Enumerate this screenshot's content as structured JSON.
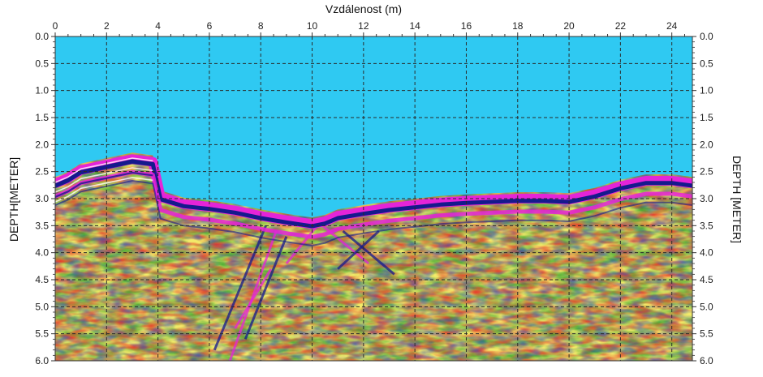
{
  "chart_data": {
    "type": "heatmap",
    "title": "",
    "xlabel": "Vzdálenost (m)",
    "ylabel_left": "DEPTH[METER]",
    "ylabel_right": "DEPTH [METER]",
    "xlim": [
      0,
      24.8
    ],
    "ylim": [
      0,
      6.0
    ],
    "x_ticks": [
      "0",
      "2",
      "4",
      "6",
      "8",
      "10",
      "12",
      "14",
      "16",
      "18",
      "20",
      "22",
      "24"
    ],
    "y_ticks": [
      "0.0",
      "0.5",
      "1.0",
      "1.5",
      "2.0",
      "2.5",
      "3.0",
      "3.5",
      "4.0",
      "4.5",
      "5.0",
      "5.5",
      "6.0"
    ],
    "grid": true,
    "y_inverted": true,
    "surface_profile": {
      "x": [
        0,
        0.5,
        1,
        2,
        3,
        3.8,
        4.1,
        5,
        6,
        7,
        8,
        9,
        10,
        10.5,
        11,
        12,
        13,
        14,
        15,
        16,
        18,
        19,
        20,
        21,
        22,
        23,
        24,
        24.8
      ],
      "depth": [
        2.6,
        2.5,
        2.35,
        2.25,
        2.15,
        2.2,
        2.85,
        2.98,
        3.03,
        3.1,
        3.2,
        3.28,
        3.35,
        3.3,
        3.2,
        3.12,
        3.05,
        3.0,
        2.95,
        2.92,
        2.88,
        2.88,
        2.9,
        2.8,
        2.65,
        2.55,
        2.55,
        2.6
      ]
    },
    "colors": {
      "air": "#2fc9f2",
      "reflector_dark": "#151a8c",
      "reflector_magenta": "#e524d8",
      "yellow": "#f2ea6a",
      "green": "#37a52f",
      "red": "#e8412c",
      "blue": "#2b47c2"
    }
  }
}
